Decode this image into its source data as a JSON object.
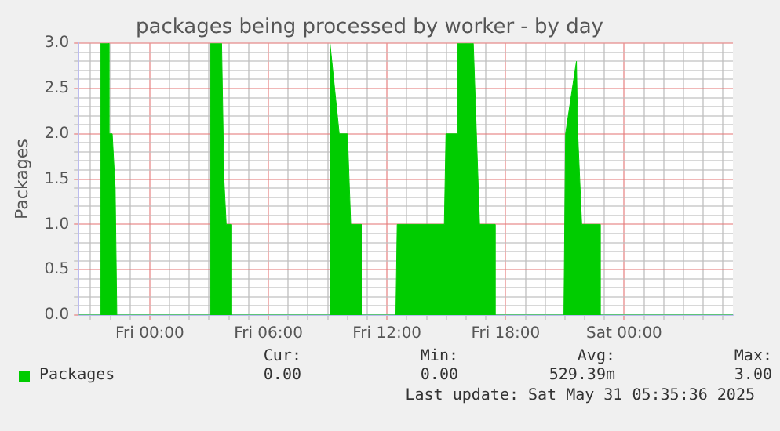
{
  "chart_data": {
    "type": "area",
    "title": "packages being processed by worker - by day",
    "ylabel": "Packages",
    "x": [
      "2025-05-29T20:24",
      "2025-05-29T21:31",
      "2025-05-29T21:31",
      "2025-05-29T21:56",
      "2025-05-29T21:56",
      "2025-05-29T22:06",
      "2025-05-29T22:15",
      "2025-05-29T22:20",
      "2025-05-30T03:05",
      "2025-05-30T03:05",
      "2025-05-30T03:38",
      "2025-05-30T03:45",
      "2025-05-30T03:52",
      "2025-05-30T04:08",
      "2025-05-30T04:08",
      "2025-05-30T09:07",
      "2025-05-30T09:07",
      "2025-05-30T09:35",
      "2025-05-30T09:35",
      "2025-05-30T10:00",
      "2025-05-30T10:10",
      "2025-05-30T10:42",
      "2025-05-30T10:42",
      "2025-05-30T12:27",
      "2025-05-30T12:31",
      "2025-05-30T14:54",
      "2025-05-30T14:59",
      "2025-05-30T15:35",
      "2025-05-30T15:35",
      "2025-05-30T16:22",
      "2025-05-30T16:41",
      "2025-05-30T17:28",
      "2025-05-30T17:28",
      "2025-05-30T20:57",
      "2025-05-30T21:02",
      "2025-05-30T21:35",
      "2025-05-30T21:39",
      "2025-05-30T21:51",
      "2025-05-30T22:47",
      "2025-05-30T22:47",
      "2025-05-31T05:30"
    ],
    "series": [
      {
        "name": "Packages",
        "color": "#00cc00",
        "values": [
          0,
          0,
          3,
          3,
          2,
          2,
          1.4,
          0,
          0,
          3,
          3,
          1.5,
          1,
          1,
          0,
          0,
          3,
          2,
          2,
          2,
          1,
          1,
          0,
          0,
          1,
          1,
          2,
          2,
          3,
          3,
          1,
          1,
          0,
          0,
          2,
          2.8,
          2,
          1,
          1,
          0,
          0
        ]
      }
    ],
    "xlim": [
      "2025-05-29T20:24",
      "2025-05-31T05:30"
    ],
    "xticks": [
      {
        "value": "2025-05-29T21:00",
        "label": null
      },
      {
        "value": "2025-05-29T22:00",
        "label": null
      },
      {
        "value": "2025-05-29T23:00",
        "label": null
      },
      {
        "value": "2025-05-30T00:00",
        "label": "Fri 00:00"
      },
      {
        "value": "2025-05-30T01:00",
        "label": null
      },
      {
        "value": "2025-05-30T02:00",
        "label": null
      },
      {
        "value": "2025-05-30T03:00",
        "label": null
      },
      {
        "value": "2025-05-30T04:00",
        "label": null
      },
      {
        "value": "2025-05-30T05:00",
        "label": null
      },
      {
        "value": "2025-05-30T06:00",
        "label": "Fri 06:00"
      },
      {
        "value": "2025-05-30T07:00",
        "label": null
      },
      {
        "value": "2025-05-30T08:00",
        "label": null
      },
      {
        "value": "2025-05-30T09:00",
        "label": null
      },
      {
        "value": "2025-05-30T10:00",
        "label": null
      },
      {
        "value": "2025-05-30T11:00",
        "label": null
      },
      {
        "value": "2025-05-30T12:00",
        "label": "Fri 12:00"
      },
      {
        "value": "2025-05-30T13:00",
        "label": null
      },
      {
        "value": "2025-05-30T14:00",
        "label": null
      },
      {
        "value": "2025-05-30T15:00",
        "label": null
      },
      {
        "value": "2025-05-30T16:00",
        "label": null
      },
      {
        "value": "2025-05-30T17:00",
        "label": null
      },
      {
        "value": "2025-05-30T18:00",
        "label": "Fri 18:00"
      },
      {
        "value": "2025-05-30T19:00",
        "label": null
      },
      {
        "value": "2025-05-30T20:00",
        "label": null
      },
      {
        "value": "2025-05-30T21:00",
        "label": null
      },
      {
        "value": "2025-05-30T22:00",
        "label": null
      },
      {
        "value": "2025-05-30T23:00",
        "label": null
      },
      {
        "value": "2025-05-31T00:00",
        "label": "Sat 00:00"
      },
      {
        "value": "2025-05-31T01:00",
        "label": null
      },
      {
        "value": "2025-05-31T02:00",
        "label": null
      },
      {
        "value": "2025-05-31T03:00",
        "label": null
      },
      {
        "value": "2025-05-31T04:00",
        "label": null
      },
      {
        "value": "2025-05-31T05:00",
        "label": null
      }
    ],
    "ylim": [
      0,
      3
    ],
    "yticks": [
      {
        "value": 0,
        "label": "0.0"
      },
      {
        "value": 0.1,
        "label": null
      },
      {
        "value": 0.2,
        "label": null
      },
      {
        "value": 0.3,
        "label": null
      },
      {
        "value": 0.4,
        "label": null
      },
      {
        "value": 0.5,
        "label": "0.5"
      },
      {
        "value": 0.6,
        "label": null
      },
      {
        "value": 0.7,
        "label": null
      },
      {
        "value": 0.8,
        "label": null
      },
      {
        "value": 0.9,
        "label": null
      },
      {
        "value": 1,
        "label": "1.0"
      },
      {
        "value": 1.1,
        "label": null
      },
      {
        "value": 1.2,
        "label": null
      },
      {
        "value": 1.3,
        "label": null
      },
      {
        "value": 1.4,
        "label": null
      },
      {
        "value": 1.5,
        "label": "1.5"
      },
      {
        "value": 1.6,
        "label": null
      },
      {
        "value": 1.7,
        "label": null
      },
      {
        "value": 1.8,
        "label": null
      },
      {
        "value": 1.9,
        "label": null
      },
      {
        "value": 2,
        "label": "2.0"
      },
      {
        "value": 2.1,
        "label": null
      },
      {
        "value": 2.2,
        "label": null
      },
      {
        "value": 2.3,
        "label": null
      },
      {
        "value": 2.4,
        "label": null
      },
      {
        "value": 2.5,
        "label": "2.5"
      },
      {
        "value": 2.6,
        "label": null
      },
      {
        "value": 2.7,
        "label": null
      },
      {
        "value": 2.8,
        "label": null
      },
      {
        "value": 2.9,
        "label": null
      },
      {
        "value": 3,
        "label": "3.0"
      }
    ],
    "grid": true,
    "legend": "bottom left",
    "annotations": [
      "Cur:",
      "0.00",
      "Min:",
      "0.00",
      "Avg:",
      "529.39m",
      "Max:",
      "3.00",
      "Last update: Sat May 31 05:35:36 2025"
    ]
  }
}
